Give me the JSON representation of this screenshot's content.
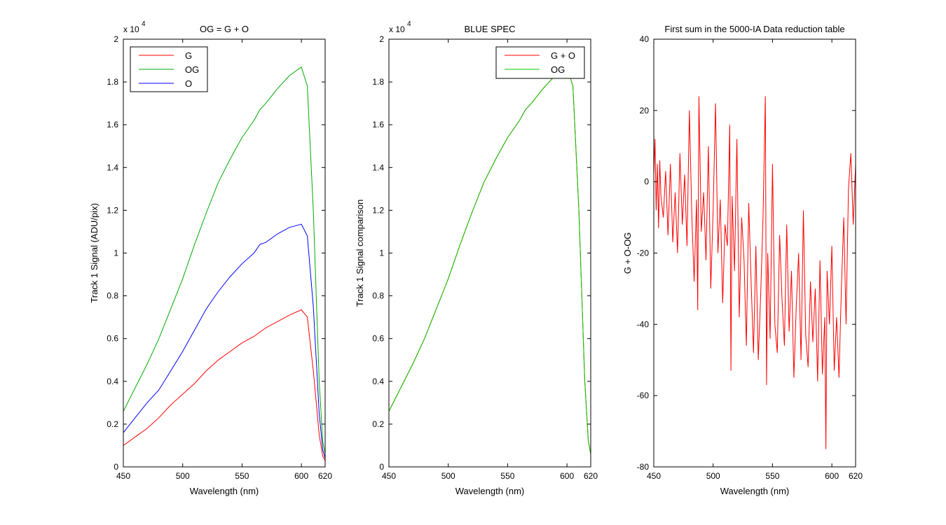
{
  "chart_data": [
    {
      "type": "line",
      "title": "OG = G + O",
      "xlabel": "Wavelength (nm)",
      "ylabel": "Track 1 Signal (ADU/pix)",
      "xlim": [
        450,
        620
      ],
      "ylim": [
        0,
        2
      ],
      "y_multiplier": "x 10",
      "y_exponent": "4",
      "x_ticks": [
        450,
        500,
        550,
        600
      ],
      "y_ticks": [
        0,
        0.2,
        0.4,
        0.6,
        0.8,
        1,
        1.2,
        1.4,
        1.6,
        1.8,
        2
      ],
      "legend": "top-left",
      "series": [
        {
          "name": "G",
          "color": "#ff0000",
          "x": [
            450,
            460,
            470,
            480,
            490,
            500,
            510,
            520,
            530,
            540,
            550,
            560,
            565,
            570,
            580,
            590,
            600,
            605,
            610,
            615,
            618,
            620
          ],
          "y": [
            0.1,
            0.14,
            0.18,
            0.23,
            0.29,
            0.34,
            0.39,
            0.45,
            0.5,
            0.54,
            0.58,
            0.61,
            0.63,
            0.65,
            0.68,
            0.71,
            0.735,
            0.7,
            0.45,
            0.15,
            0.05,
            0.03
          ]
        },
        {
          "name": "OG",
          "color": "#00aa00",
          "x": [
            450,
            460,
            470,
            480,
            490,
            500,
            510,
            520,
            530,
            540,
            550,
            560,
            565,
            570,
            580,
            590,
            600,
            605,
            610,
            615,
            618,
            620
          ],
          "y": [
            0.26,
            0.37,
            0.48,
            0.6,
            0.74,
            0.88,
            1.04,
            1.19,
            1.33,
            1.44,
            1.54,
            1.62,
            1.67,
            1.7,
            1.77,
            1.83,
            1.87,
            1.78,
            1.2,
            0.4,
            0.12,
            0.06
          ]
        },
        {
          "name": "O",
          "color": "#0000ff",
          "x": [
            450,
            460,
            470,
            480,
            490,
            500,
            510,
            520,
            530,
            540,
            550,
            560,
            565,
            570,
            580,
            590,
            600,
            605,
            610,
            615,
            618,
            620
          ],
          "y": [
            0.16,
            0.23,
            0.3,
            0.36,
            0.45,
            0.54,
            0.64,
            0.74,
            0.82,
            0.89,
            0.95,
            1.0,
            1.04,
            1.05,
            1.09,
            1.12,
            1.135,
            1.08,
            0.75,
            0.25,
            0.08,
            0.04
          ]
        }
      ]
    },
    {
      "type": "line",
      "title": "BLUE SPEC",
      "xlabel": "Wavelength (nm)",
      "ylabel": "Track 1 Signal comparison",
      "xlim": [
        450,
        620
      ],
      "ylim": [
        0,
        2
      ],
      "y_multiplier": "x 10",
      "y_exponent": "4",
      "x_ticks": [
        450,
        500,
        550,
        600
      ],
      "y_ticks": [
        0,
        0.2,
        0.4,
        0.6,
        0.8,
        1,
        1.2,
        1.4,
        1.6,
        1.8,
        2
      ],
      "legend": "top-right",
      "series": [
        {
          "name": "G + O",
          "color": "#ff0000",
          "x": [
            450,
            460,
            470,
            480,
            490,
            500,
            510,
            520,
            530,
            540,
            550,
            560,
            565,
            570,
            580,
            590,
            600,
            605,
            610,
            615,
            618,
            620
          ],
          "y": [
            0.26,
            0.37,
            0.48,
            0.6,
            0.74,
            0.88,
            1.04,
            1.19,
            1.33,
            1.44,
            1.54,
            1.62,
            1.67,
            1.7,
            1.77,
            1.83,
            1.87,
            1.78,
            1.2,
            0.4,
            0.12,
            0.06
          ]
        },
        {
          "name": "OG",
          "color": "#00cc00",
          "x": [
            450,
            460,
            470,
            480,
            490,
            500,
            510,
            520,
            530,
            540,
            550,
            560,
            565,
            570,
            580,
            590,
            600,
            605,
            610,
            615,
            618,
            620
          ],
          "y": [
            0.26,
            0.37,
            0.48,
            0.6,
            0.74,
            0.88,
            1.04,
            1.19,
            1.33,
            1.44,
            1.54,
            1.62,
            1.67,
            1.7,
            1.77,
            1.83,
            1.87,
            1.78,
            1.2,
            0.4,
            0.12,
            0.06
          ]
        }
      ]
    },
    {
      "type": "line",
      "title": "First sum in the 5000-IA Data reduction table",
      "xlabel": "Wavelength (nm)",
      "ylabel": "G + O-OG",
      "xlim": [
        450,
        620
      ],
      "ylim": [
        -80,
        40
      ],
      "x_ticks": [
        450,
        500,
        550,
        600
      ],
      "y_ticks": [
        -80,
        -60,
        -40,
        -20,
        0,
        20,
        40
      ],
      "series": [
        {
          "color": "#ff0000",
          "x": [
            450,
            451,
            452,
            453,
            454,
            455,
            456,
            458,
            460,
            462,
            464,
            466,
            468,
            470,
            472,
            474,
            476,
            478,
            480,
            482,
            484,
            486,
            487,
            488,
            490,
            492,
            494,
            496,
            498,
            500,
            502,
            504,
            506,
            508,
            510,
            512,
            514,
            515,
            516,
            518,
            520,
            522,
            524,
            526,
            528,
            530,
            532,
            534,
            536,
            538,
            540,
            542,
            544,
            545,
            546,
            548,
            550,
            552,
            554,
            556,
            558,
            560,
            562,
            564,
            566,
            568,
            570,
            572,
            574,
            576,
            578,
            580,
            582,
            584,
            586,
            588,
            590,
            592,
            594,
            595,
            596,
            598,
            600,
            602,
            604,
            606,
            608,
            610,
            612,
            614,
            616,
            618,
            620
          ],
          "y": [
            2,
            12,
            -8,
            5,
            -13,
            6,
            -4,
            -10,
            3,
            -15,
            5,
            -17,
            -3,
            -20,
            8,
            -12,
            2,
            -18,
            20,
            -9,
            -28,
            -5,
            -36,
            24,
            -14,
            -3,
            -22,
            10,
            -30,
            -8,
            22,
            -20,
            -5,
            -34,
            -12,
            -18,
            16,
            -53,
            -4,
            -25,
            12,
            -38,
            -10,
            -22,
            -46,
            -6,
            -28,
            -48,
            -18,
            -50,
            -32,
            -10,
            24,
            -57,
            -20,
            -44,
            5,
            -40,
            -48,
            -15,
            -33,
            -46,
            -12,
            -42,
            -25,
            -55,
            -35,
            -20,
            -50,
            -8,
            -43,
            -52,
            -28,
            -45,
            -30,
            -56,
            -22,
            -54,
            -38,
            -75,
            -25,
            -40,
            -18,
            -53,
            -38,
            -55,
            -30,
            -10,
            -40,
            -2,
            8,
            -12,
            5
          ]
        }
      ]
    }
  ]
}
